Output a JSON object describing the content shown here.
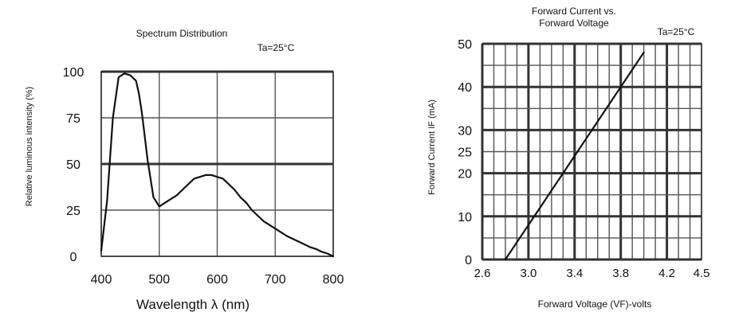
{
  "chart_data": [
    {
      "type": "line",
      "title": "Spectrum Distribution",
      "annotation": "Ta=25°C",
      "xlabel": "Wavelength λ (nm)",
      "ylabel": "Relative luminous intensity (%)",
      "xlim": [
        400,
        800
      ],
      "ylim": [
        0,
        100
      ],
      "x_ticks": [
        "400",
        "500",
        "600",
        "700",
        "800"
      ],
      "y_ticks": [
        "0",
        "25",
        "50",
        "75",
        "100"
      ],
      "grid": true,
      "series": [
        {
          "x": [
            400,
            410,
            420,
            430,
            440,
            450,
            460,
            465,
            470,
            480,
            490,
            500,
            510,
            520,
            530,
            540,
            550,
            560,
            570,
            580,
            590,
            600,
            610,
            620,
            630,
            640,
            650,
            660,
            670,
            680,
            690,
            700,
            710,
            720,
            730,
            740,
            750,
            760,
            770,
            780,
            790,
            800
          ],
          "values": [
            3,
            30,
            75,
            97,
            99,
            98,
            95,
            88,
            78,
            52,
            32,
            27,
            29,
            31,
            33,
            36,
            39,
            42,
            43,
            44,
            44,
            43,
            42,
            39,
            36,
            32,
            29,
            25,
            22,
            19,
            17,
            15,
            13,
            11,
            9.5,
            8,
            6.5,
            5,
            4,
            2.5,
            1.5,
            0
          ]
        }
      ]
    },
    {
      "type": "line",
      "title": "Forward Current vs.\nForward Voltage",
      "title_lines": [
        "Forward Current vs.",
        "Forward Voltage"
      ],
      "annotation": "Ta=25°C",
      "xlabel": "Forward Voltage (VF)-volts",
      "ylabel": "Forward Current IF (mA)",
      "xlim": [
        2.6,
        4.5
      ],
      "ylim": [
        0,
        50
      ],
      "x_ticks": [
        "2.6",
        "3.0",
        "3.4",
        "3.8",
        "4.2",
        "4.5"
      ],
      "y_ticks": [
        "0",
        "10",
        "20",
        "25",
        "30",
        "40",
        "50"
      ],
      "grid": true,
      "series": [
        {
          "x": [
            2.8,
            2.9,
            3.0,
            3.1,
            3.2,
            3.3,
            3.4,
            3.5,
            3.6,
            3.7,
            3.8,
            3.9,
            4.0
          ],
          "values": [
            0,
            4,
            8,
            12,
            16,
            20,
            24,
            28,
            32,
            36,
            40,
            44,
            48
          ]
        }
      ]
    }
  ]
}
